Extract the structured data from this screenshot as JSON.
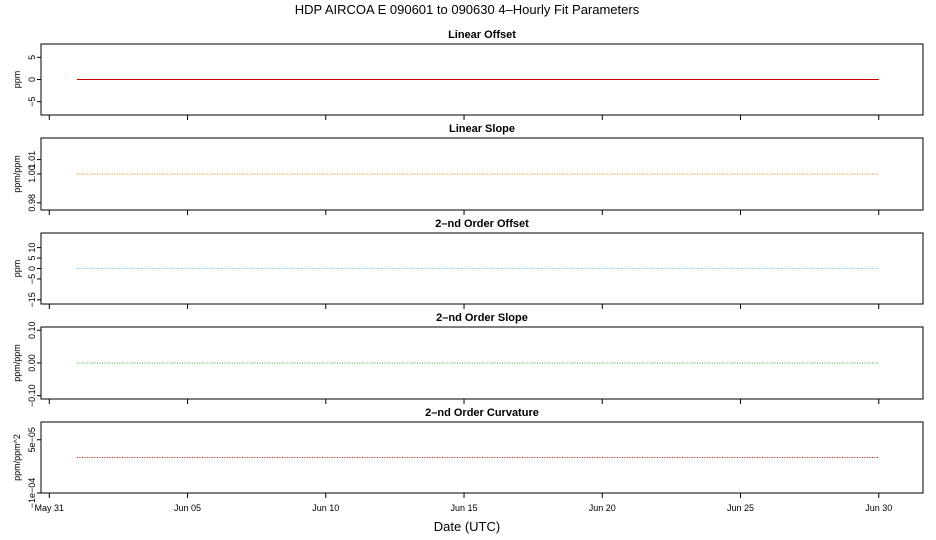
{
  "title": "HDP   AIRCOA E   090601 to 090630   4–Hourly Fit Parameters",
  "chart_data": [
    {
      "type": "line",
      "title": "Linear Offset",
      "ylabel": "ppm",
      "ylim": [
        -8,
        8
      ],
      "yticks": [
        -5,
        0,
        5
      ],
      "ytick_labels": [
        "−5",
        "0",
        "5"
      ],
      "color": "#cc0000",
      "line_style": "solid",
      "x_range_days": [
        "May 31.92",
        "Jun 30.92"
      ],
      "series": [
        {
          "x": [
            "2009-06-01",
            "2009-06-30"
          ],
          "y": [
            0,
            0
          ]
        }
      ]
    },
    {
      "type": "line",
      "title": "Linear Slope",
      "ylabel": "ppm/ppm",
      "ylim": [
        0.975,
        1.025
      ],
      "yticks": [
        0.98,
        1.0,
        1.01
      ],
      "ytick_labels": [
        "0.98",
        "1.00",
        "1.01"
      ],
      "color": "#cc8800",
      "line_style": "dotted",
      "series": [
        {
          "x": [
            "2009-06-01",
            "2009-06-30"
          ],
          "y": [
            1.0,
            1.0
          ]
        }
      ]
    },
    {
      "type": "line",
      "title": "2–nd Order Offset",
      "ylabel": "ppm",
      "ylim": [
        -17,
        17
      ],
      "yticks": [
        -15,
        -5,
        0,
        5,
        10
      ],
      "ytick_labels": [
        "−15",
        "−5",
        "0",
        "5",
        "10"
      ],
      "color": "#55bbff",
      "line_style": "dotted",
      "series": [
        {
          "x": [
            "2009-06-01",
            "2009-06-30"
          ],
          "y": [
            0,
            0
          ]
        }
      ]
    },
    {
      "type": "line",
      "title": "2–nd Order Slope",
      "ylabel": "ppm/ppm",
      "ylim": [
        -0.11,
        0.11
      ],
      "yticks": [
        -0.1,
        0.0,
        0.1
      ],
      "ytick_labels": [
        "−0.10",
        "0.00",
        "0.10"
      ],
      "color": "#22aa22",
      "line_style": "dotted",
      "series": [
        {
          "x": [
            "2009-06-01",
            "2009-06-30"
          ],
          "y": [
            0,
            0
          ]
        }
      ]
    },
    {
      "type": "line",
      "title": "2–nd Order Curvature",
      "ylabel": "ppm/ppm^2",
      "ylim": [
        -0.0001,
        0.0001
      ],
      "yticks": [
        -0.0001,
        5e-05
      ],
      "ytick_labels": [
        "−1e−04",
        "5e−05"
      ],
      "color": "#cc0000",
      "line_style": "dotted",
      "series": [
        {
          "x": [
            "2009-06-01",
            "2009-06-30"
          ],
          "y": [
            0,
            0
          ]
        }
      ]
    }
  ],
  "x_axis": {
    "label": "Date (UTC)",
    "ticks": [
      {
        "date": "2009-05-31",
        "label": "May 31"
      },
      {
        "date": "2009-06-05",
        "label": "Jun 05"
      },
      {
        "date": "2009-06-10",
        "label": "Jun 10"
      },
      {
        "date": "2009-06-15",
        "label": "Jun 15"
      },
      {
        "date": "2009-06-20",
        "label": "Jun 20"
      },
      {
        "date": "2009-06-25",
        "label": "Jun 25"
      },
      {
        "date": "2009-06-30",
        "label": "Jun 30"
      }
    ]
  }
}
